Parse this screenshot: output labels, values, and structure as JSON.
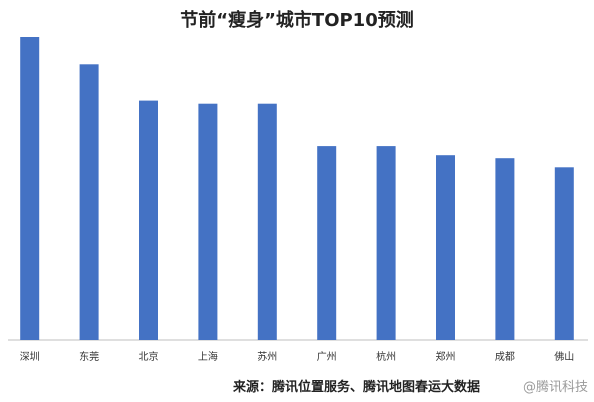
{
  "chart_data": {
    "type": "bar",
    "title": "节前“瘦身”城市TOP10预测",
    "categories": [
      "深圳",
      "东莞",
      "北京",
      "上海",
      "苏州",
      "广州",
      "杭州",
      "郑州",
      "成都",
      "佛山"
    ],
    "values": [
      100,
      91,
      79,
      78,
      78,
      64,
      64,
      61,
      60,
      57
    ],
    "ylim": [
      0,
      100
    ],
    "grid": false,
    "bar_color": "#4472C4",
    "source": "来源：腾讯位置服务、腾讯地图春运大数据"
  },
  "watermark": "@腾讯科技"
}
